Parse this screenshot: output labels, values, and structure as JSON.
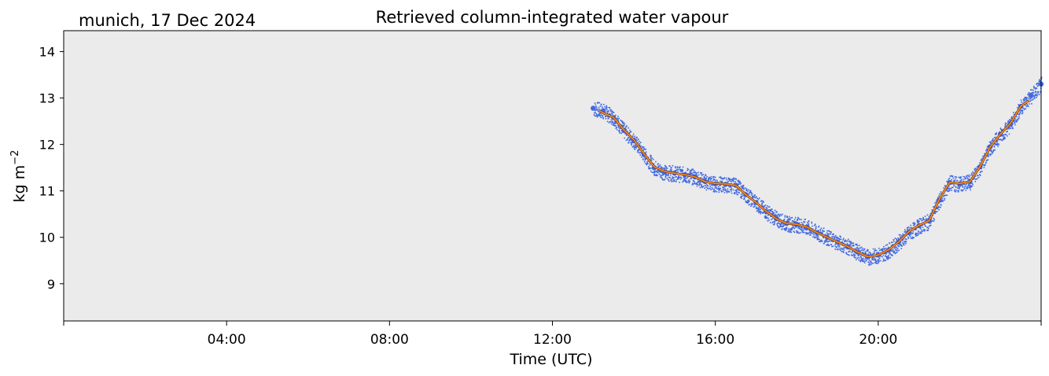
{
  "chart_data": {
    "type": "scatter",
    "title": "Retrieved column-integrated water vapour",
    "location_label": "munich, 17 Dec 2024",
    "xlabel": "Time (UTC)",
    "ylabel_base": "kg m",
    "ylabel_sup": "−2",
    "x_unit": "hours",
    "xlim": [
      0,
      24
    ],
    "ylim": [
      8.2,
      14.45
    ],
    "xticks": [
      {
        "value": 0,
        "label": ""
      },
      {
        "value": 4,
        "label": "04:00"
      },
      {
        "value": 8,
        "label": "08:00"
      },
      {
        "value": 12,
        "label": "12:00"
      },
      {
        "value": 16,
        "label": "16:00"
      },
      {
        "value": 20,
        "label": "20:00"
      },
      {
        "value": 24,
        "label": ""
      }
    ],
    "yticks": [
      9,
      10,
      11,
      12,
      13,
      14
    ],
    "plot_background": "#ebebeb",
    "grid": false,
    "series": [
      {
        "role": "raw retrievals",
        "style": "dense scatter",
        "color": "#4169e1",
        "values": [
          [
            13.0,
            12.78
          ],
          [
            13.25,
            12.72
          ],
          [
            13.5,
            12.58
          ],
          [
            13.75,
            12.3
          ],
          [
            14.0,
            12.08
          ],
          [
            14.25,
            11.78
          ],
          [
            14.5,
            11.5
          ],
          [
            14.75,
            11.4
          ],
          [
            15.0,
            11.38
          ],
          [
            15.25,
            11.35
          ],
          [
            15.5,
            11.3
          ],
          [
            15.75,
            11.2
          ],
          [
            16.0,
            11.15
          ],
          [
            16.25,
            11.14
          ],
          [
            16.5,
            11.12
          ],
          [
            16.75,
            10.92
          ],
          [
            17.0,
            10.75
          ],
          [
            17.25,
            10.55
          ],
          [
            17.5,
            10.4
          ],
          [
            17.75,
            10.3
          ],
          [
            18.0,
            10.28
          ],
          [
            18.25,
            10.22
          ],
          [
            18.5,
            10.1
          ],
          [
            18.75,
            10.0
          ],
          [
            19.0,
            9.9
          ],
          [
            19.25,
            9.8
          ],
          [
            19.5,
            9.68
          ],
          [
            19.75,
            9.58
          ],
          [
            20.0,
            9.62
          ],
          [
            20.25,
            9.72
          ],
          [
            20.5,
            9.9
          ],
          [
            20.75,
            10.1
          ],
          [
            21.0,
            10.25
          ],
          [
            21.25,
            10.35
          ],
          [
            21.5,
            10.8
          ],
          [
            21.75,
            11.18
          ],
          [
            22.0,
            11.15
          ],
          [
            22.25,
            11.2
          ],
          [
            22.5,
            11.52
          ],
          [
            22.75,
            11.95
          ],
          [
            23.0,
            12.22
          ],
          [
            23.25,
            12.45
          ],
          [
            23.5,
            12.82
          ],
          [
            23.75,
            13.05
          ],
          [
            24.0,
            13.3
          ]
        ]
      },
      {
        "role": "smoothed",
        "style": "line",
        "color": "#ff8c2a",
        "values": [
          [
            13.15,
            12.72
          ],
          [
            13.5,
            12.58
          ],
          [
            13.75,
            12.32
          ],
          [
            14.0,
            12.1
          ],
          [
            14.25,
            11.8
          ],
          [
            14.5,
            11.52
          ],
          [
            14.75,
            11.42
          ],
          [
            15.0,
            11.38
          ],
          [
            15.25,
            11.35
          ],
          [
            15.5,
            11.3
          ],
          [
            15.75,
            11.2
          ],
          [
            16.0,
            11.16
          ],
          [
            16.25,
            11.15
          ],
          [
            16.5,
            11.12
          ],
          [
            16.75,
            10.92
          ],
          [
            17.0,
            10.75
          ],
          [
            17.25,
            10.56
          ],
          [
            17.5,
            10.4
          ],
          [
            17.75,
            10.3
          ],
          [
            18.0,
            10.28
          ],
          [
            18.25,
            10.22
          ],
          [
            18.5,
            10.1
          ],
          [
            18.75,
            10.0
          ],
          [
            19.0,
            9.9
          ],
          [
            19.25,
            9.8
          ],
          [
            19.5,
            9.68
          ],
          [
            19.75,
            9.58
          ],
          [
            20.0,
            9.62
          ],
          [
            20.25,
            9.73
          ],
          [
            20.5,
            9.9
          ],
          [
            20.75,
            10.12
          ],
          [
            21.0,
            10.26
          ],
          [
            21.25,
            10.36
          ],
          [
            21.5,
            10.82
          ],
          [
            21.75,
            11.18
          ],
          [
            22.0,
            11.16
          ],
          [
            22.25,
            11.2
          ],
          [
            22.5,
            11.52
          ],
          [
            22.75,
            11.95
          ],
          [
            23.0,
            12.22
          ],
          [
            23.25,
            12.46
          ],
          [
            23.5,
            12.82
          ],
          [
            23.7,
            12.95
          ]
        ]
      }
    ]
  }
}
